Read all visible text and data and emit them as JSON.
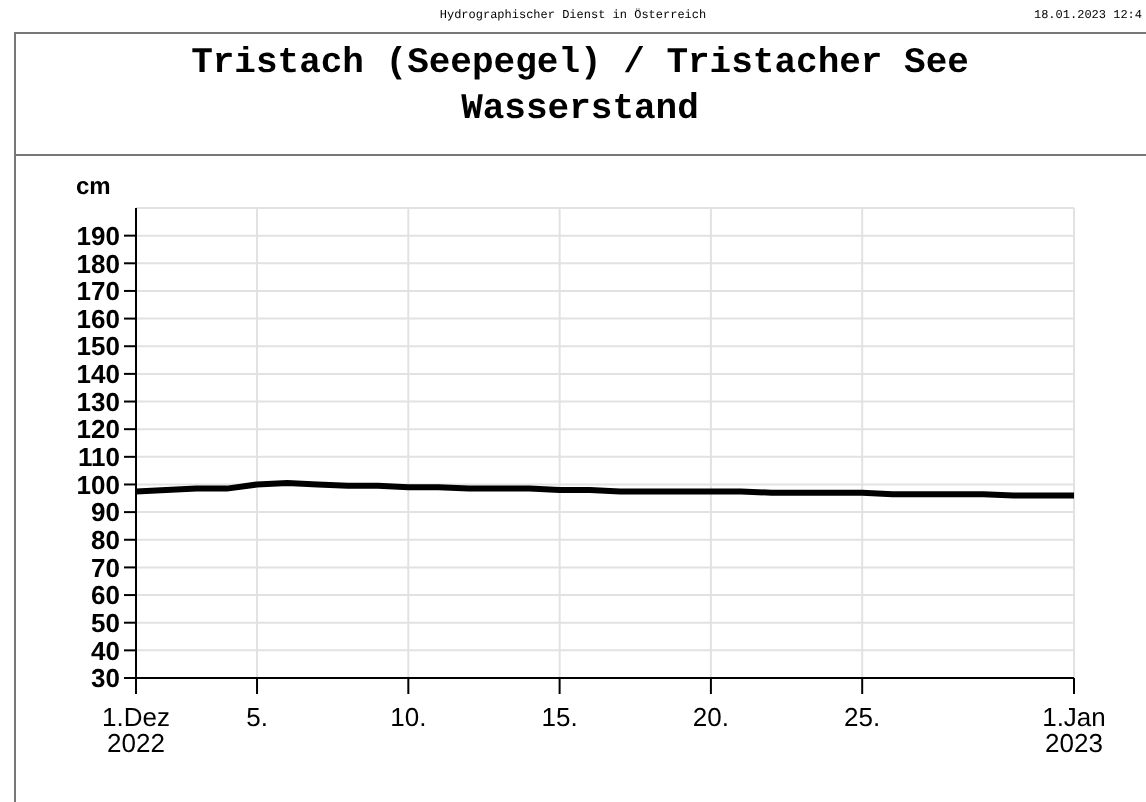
{
  "chart_data": {
    "type": "line",
    "title": "Tristach (Seepegel) / Tristacher See",
    "subtitle": "Wasserstand",
    "ylabel": "cm",
    "annotations": [
      "Hydrographischer Dienst in Österreich",
      "18.01.2023 12:4"
    ],
    "x": [
      "2022-12-01",
      "2022-12-02",
      "2022-12-03",
      "2022-12-04",
      "2022-12-05",
      "2022-12-06",
      "2022-12-07",
      "2022-12-08",
      "2022-12-09",
      "2022-12-10",
      "2022-12-11",
      "2022-12-12",
      "2022-12-13",
      "2022-12-14",
      "2022-12-15",
      "2022-12-16",
      "2022-12-17",
      "2022-12-18",
      "2022-12-19",
      "2022-12-20",
      "2022-12-21",
      "2022-12-22",
      "2022-12-23",
      "2022-12-24",
      "2022-12-25",
      "2022-12-26",
      "2022-12-27",
      "2022-12-28",
      "2022-12-29",
      "2022-12-30",
      "2022-12-31",
      "2023-01-01"
    ],
    "series": [
      {
        "color": "#000000",
        "values": [
          97.5,
          98,
          98.5,
          98.5,
          100,
          100.5,
          100,
          99.5,
          99.5,
          99,
          99,
          98.5,
          98.5,
          98.5,
          98,
          98,
          97.5,
          97.5,
          97.5,
          97.5,
          97.5,
          97,
          97,
          97,
          97,
          96.5,
          96.5,
          96.5,
          96.5,
          96,
          96,
          96
        ]
      }
    ],
    "xlim": [
      "2022-12-01",
      "2023-01-01"
    ],
    "xticks": [
      {
        "value": "2022-12-01",
        "label": "1.Dez 2022"
      },
      {
        "value": "2022-12-05",
        "label": "5."
      },
      {
        "value": "2022-12-10",
        "label": "10."
      },
      {
        "value": "2022-12-15",
        "label": "15."
      },
      {
        "value": "2022-12-20",
        "label": "20."
      },
      {
        "value": "2022-12-25",
        "label": "25."
      },
      {
        "value": "2023-01-01",
        "label": "1.Jan 2023"
      }
    ],
    "ylim": [
      30,
      200
    ],
    "yticks": [
      30,
      40,
      50,
      60,
      70,
      80,
      90,
      100,
      110,
      120,
      130,
      140,
      150,
      160,
      170,
      180,
      190
    ],
    "grid": true,
    "marker": "none",
    "line_style": "solid"
  }
}
